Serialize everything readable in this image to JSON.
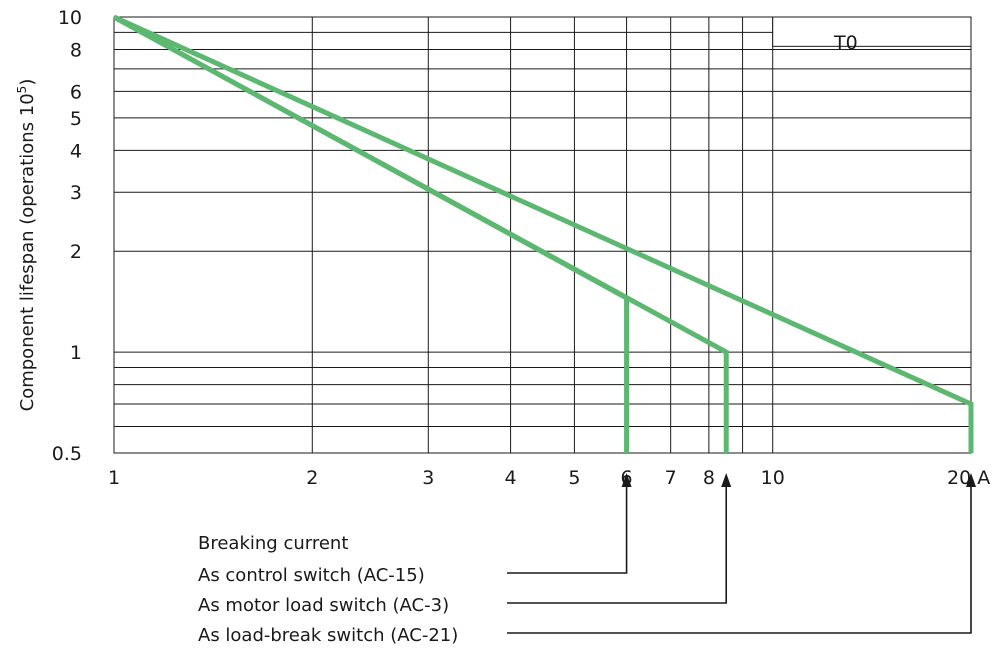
{
  "chart_data": {
    "type": "line",
    "title": "",
    "xlabel": "",
    "ylabel": "Component lifespan (operations 10",
    "ylabel_sup": "5",
    "ylabel_close": ")",
    "x_scale": "log",
    "y_scale": "log",
    "xlim": [
      1,
      20
    ],
    "ylim": [
      0.5,
      10
    ],
    "grid": true,
    "x_ticks": [
      {
        "value": 1,
        "label": "1"
      },
      {
        "value": 2,
        "label": "2"
      },
      {
        "value": 3,
        "label": "3"
      },
      {
        "value": 4,
        "label": "4"
      },
      {
        "value": 5,
        "label": "5"
      },
      {
        "value": 6,
        "label": "6"
      },
      {
        "value": 7,
        "label": "7"
      },
      {
        "value": 8,
        "label": "8"
      },
      {
        "value": 10,
        "label": "10"
      },
      {
        "value": 20,
        "label": "20 A"
      }
    ],
    "x_grid_extra": [
      9
    ],
    "y_ticks": [
      {
        "value": 0.5,
        "label": "0.5"
      },
      {
        "value": 1,
        "label": "1"
      },
      {
        "value": 2,
        "label": "2"
      },
      {
        "value": 3,
        "label": "3"
      },
      {
        "value": 4,
        "label": "4"
      },
      {
        "value": 5,
        "label": "5"
      },
      {
        "value": 6,
        "label": "6"
      },
      {
        "value": 8,
        "label": "8"
      },
      {
        "value": 10,
        "label": "10"
      }
    ],
    "y_grid_extra": [
      0.6,
      0.7,
      0.8,
      0.9,
      7,
      9
    ],
    "inset_label": "T0",
    "series": [
      {
        "x": [
          1,
          6,
          6
        ],
        "y": [
          10,
          1.45,
          0.5
        ]
      },
      {
        "x": [
          1,
          8.5,
          8.5
        ],
        "y": [
          10,
          1.0,
          0.5
        ]
      },
      {
        "x": [
          1,
          20,
          20
        ],
        "y": [
          10,
          0.7,
          0.5
        ]
      }
    ],
    "annotations": {
      "heading": "Breaking current",
      "items": [
        {
          "label": "As control switch (AC-15)",
          "x": 6
        },
        {
          "label": "As motor load switch (AC-3)",
          "x": 8.5
        },
        {
          "label": "As load-break switch (AC-21)",
          "x": 20
        }
      ]
    },
    "colors": {
      "series": "#5cb870",
      "grid": "#1a1a1a",
      "text": "#1a1a1a"
    }
  }
}
